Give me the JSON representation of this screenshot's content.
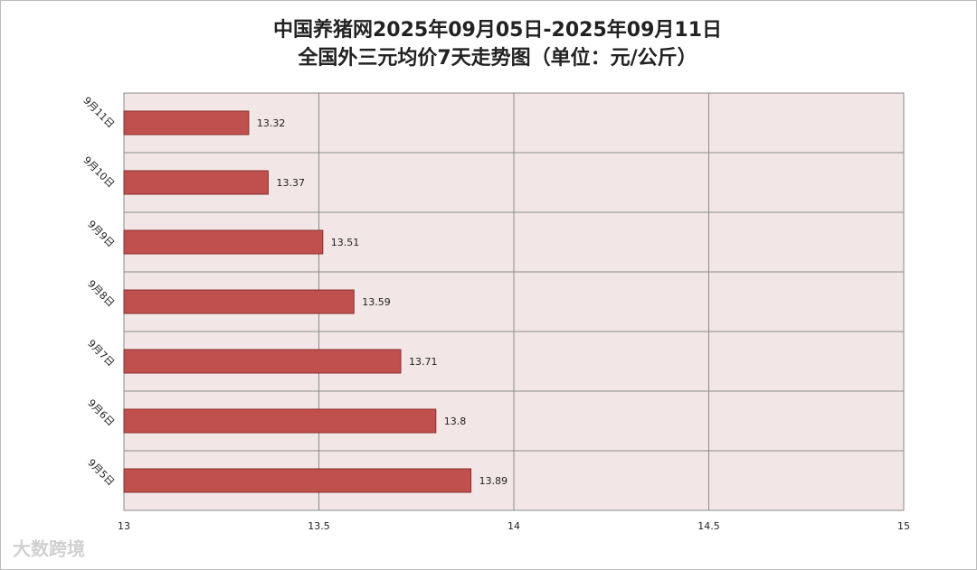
{
  "chart_data": {
    "type": "bar",
    "orientation": "horizontal",
    "title": "中国养猪网2025年09月05日-2025年09月11日",
    "subtitle": "全国外三元均价7天走势图（单位：元/公斤）",
    "categories": [
      "9月11日",
      "9月10日",
      "9月9日",
      "9月8日",
      "9月7日",
      "9月6日",
      "9月5日"
    ],
    "values": [
      13.32,
      13.37,
      13.51,
      13.59,
      13.71,
      13.8,
      13.89
    ],
    "color": "#c0504d",
    "xlim": [
      13,
      15
    ],
    "xticks": [
      13,
      13.5,
      14,
      14.5,
      15
    ],
    "grid": true
  },
  "watermark": "大数跨境"
}
